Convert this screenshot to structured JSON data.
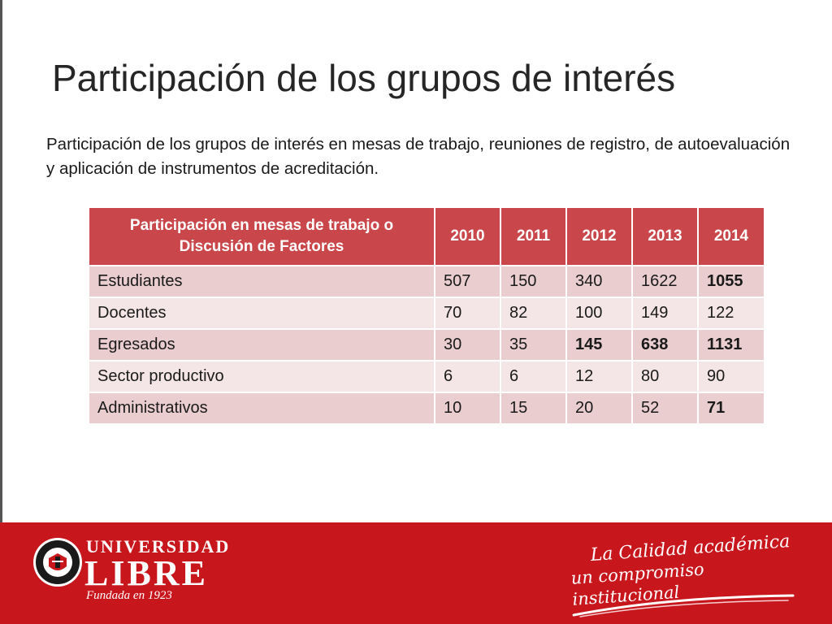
{
  "slide": {
    "title": "Participación de los grupos de interés",
    "subtitle": "Participación de los grupos de interés en mesas de trabajo, reuniones de registro, de autoevaluación y aplicación de instrumentos de acreditación."
  },
  "table": {
    "header": {
      "label": "Participación en mesas de trabajo o Discusión de Factores",
      "years": [
        "2010",
        "2011",
        "2012",
        "2013",
        "2014"
      ]
    },
    "rows": [
      {
        "label": "Estudiantes",
        "values": [
          "507",
          "150",
          "340",
          "1622",
          "1055"
        ]
      },
      {
        "label": "Docentes",
        "values": [
          "70",
          "82",
          "100",
          "149",
          "122"
        ]
      },
      {
        "label": "Egresados",
        "values": [
          "30",
          "35",
          "145",
          "638",
          "1131"
        ]
      },
      {
        "label": "Sector productivo",
        "values": [
          "6",
          "6",
          "12",
          "80",
          "90"
        ]
      },
      {
        "label": "Administrativos",
        "values": [
          "10",
          "15",
          "20",
          "52",
          "71"
        ]
      }
    ]
  },
  "footer": {
    "logo_top": "UNIVERSIDAD",
    "logo_main": "LIBRE",
    "logo_tagline": "Fundada en 1923",
    "seal_label": "UNIVERSIDAD LIBRE COLOMBIA",
    "slogan_line1": "La Calidad académica",
    "slogan_line2": "un compromiso institucional"
  },
  "colors": {
    "header": "#c9464a",
    "row_odd": "#e9cdcf",
    "row_even": "#f4e6e7",
    "footer": "#c8161d"
  }
}
